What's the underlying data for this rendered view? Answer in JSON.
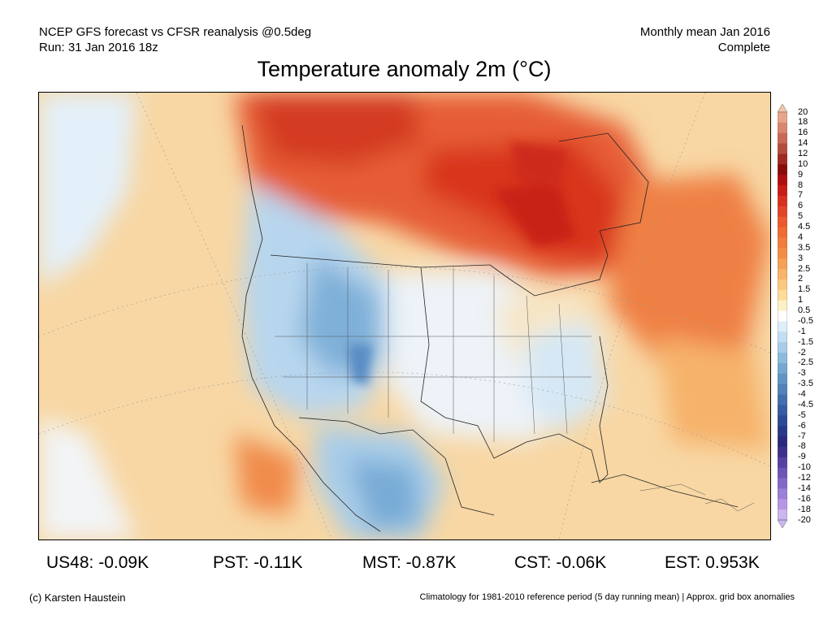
{
  "header": {
    "line1_left": "NCEP GFS forecast vs CFSR reanalysis @0.5deg",
    "line2_left": "Run: 31 Jan 2016 18z",
    "line1_right": "Monthly mean Jan 2016",
    "line2_right": "Complete"
  },
  "title": "Temperature anomaly 2m (°C)",
  "colorbar": {
    "levels": [
      "20",
      "18",
      "16",
      "14",
      "12",
      "10",
      "9",
      "8",
      "7",
      "6",
      "5",
      "4.5",
      "4",
      "3.5",
      "3",
      "2.5",
      "2",
      "1.5",
      "1",
      "0.5",
      "-0.5",
      "-1",
      "-1.5",
      "-2",
      "-2.5",
      "-3",
      "-3.5",
      "-4",
      "-4.5",
      "-5",
      "-6",
      "-7",
      "-8",
      "-9",
      "-10",
      "-12",
      "-14",
      "-16",
      "-18",
      "-20"
    ],
    "colors": [
      "#f2c4a8",
      "#e8a48a",
      "#d9876e",
      "#c96a55",
      "#b34d3c",
      "#9e2a22",
      "#8a0b0b",
      "#b00f0f",
      "#c81c16",
      "#d8301e",
      "#e24428",
      "#ea5a2e",
      "#ef6b34",
      "#f27c3c",
      "#f48c46",
      "#f6a056",
      "#f8b468",
      "#fac87e",
      "#fcdc98",
      "#fdf0c4",
      "#ffffff",
      "#deeefa",
      "#c2def2",
      "#a7cde8",
      "#8dbbdc",
      "#75a8d0",
      "#6195c5",
      "#5182ba",
      "#426fae",
      "#365ca2",
      "#2c4a95",
      "#283889",
      "#2a2a7d",
      "#3e2f8e",
      "#5740a3",
      "#6d54b6",
      "#8468c8",
      "#9c7fd8",
      "#b498e5",
      "#cdb5f0"
    ]
  },
  "stats": [
    {
      "label": "US48: -0.09K"
    },
    {
      "label": "PST: -0.11K"
    },
    {
      "label": "MST: -0.87K"
    },
    {
      "label": "CST: -0.06K"
    },
    {
      "label": "EST: 0.953K"
    }
  ],
  "footer": {
    "left": "(c) Karsten Haustein",
    "right": "Climatology for 1981-2010 reference period (5 day running mean) | Approx. grid box anomalies"
  }
}
